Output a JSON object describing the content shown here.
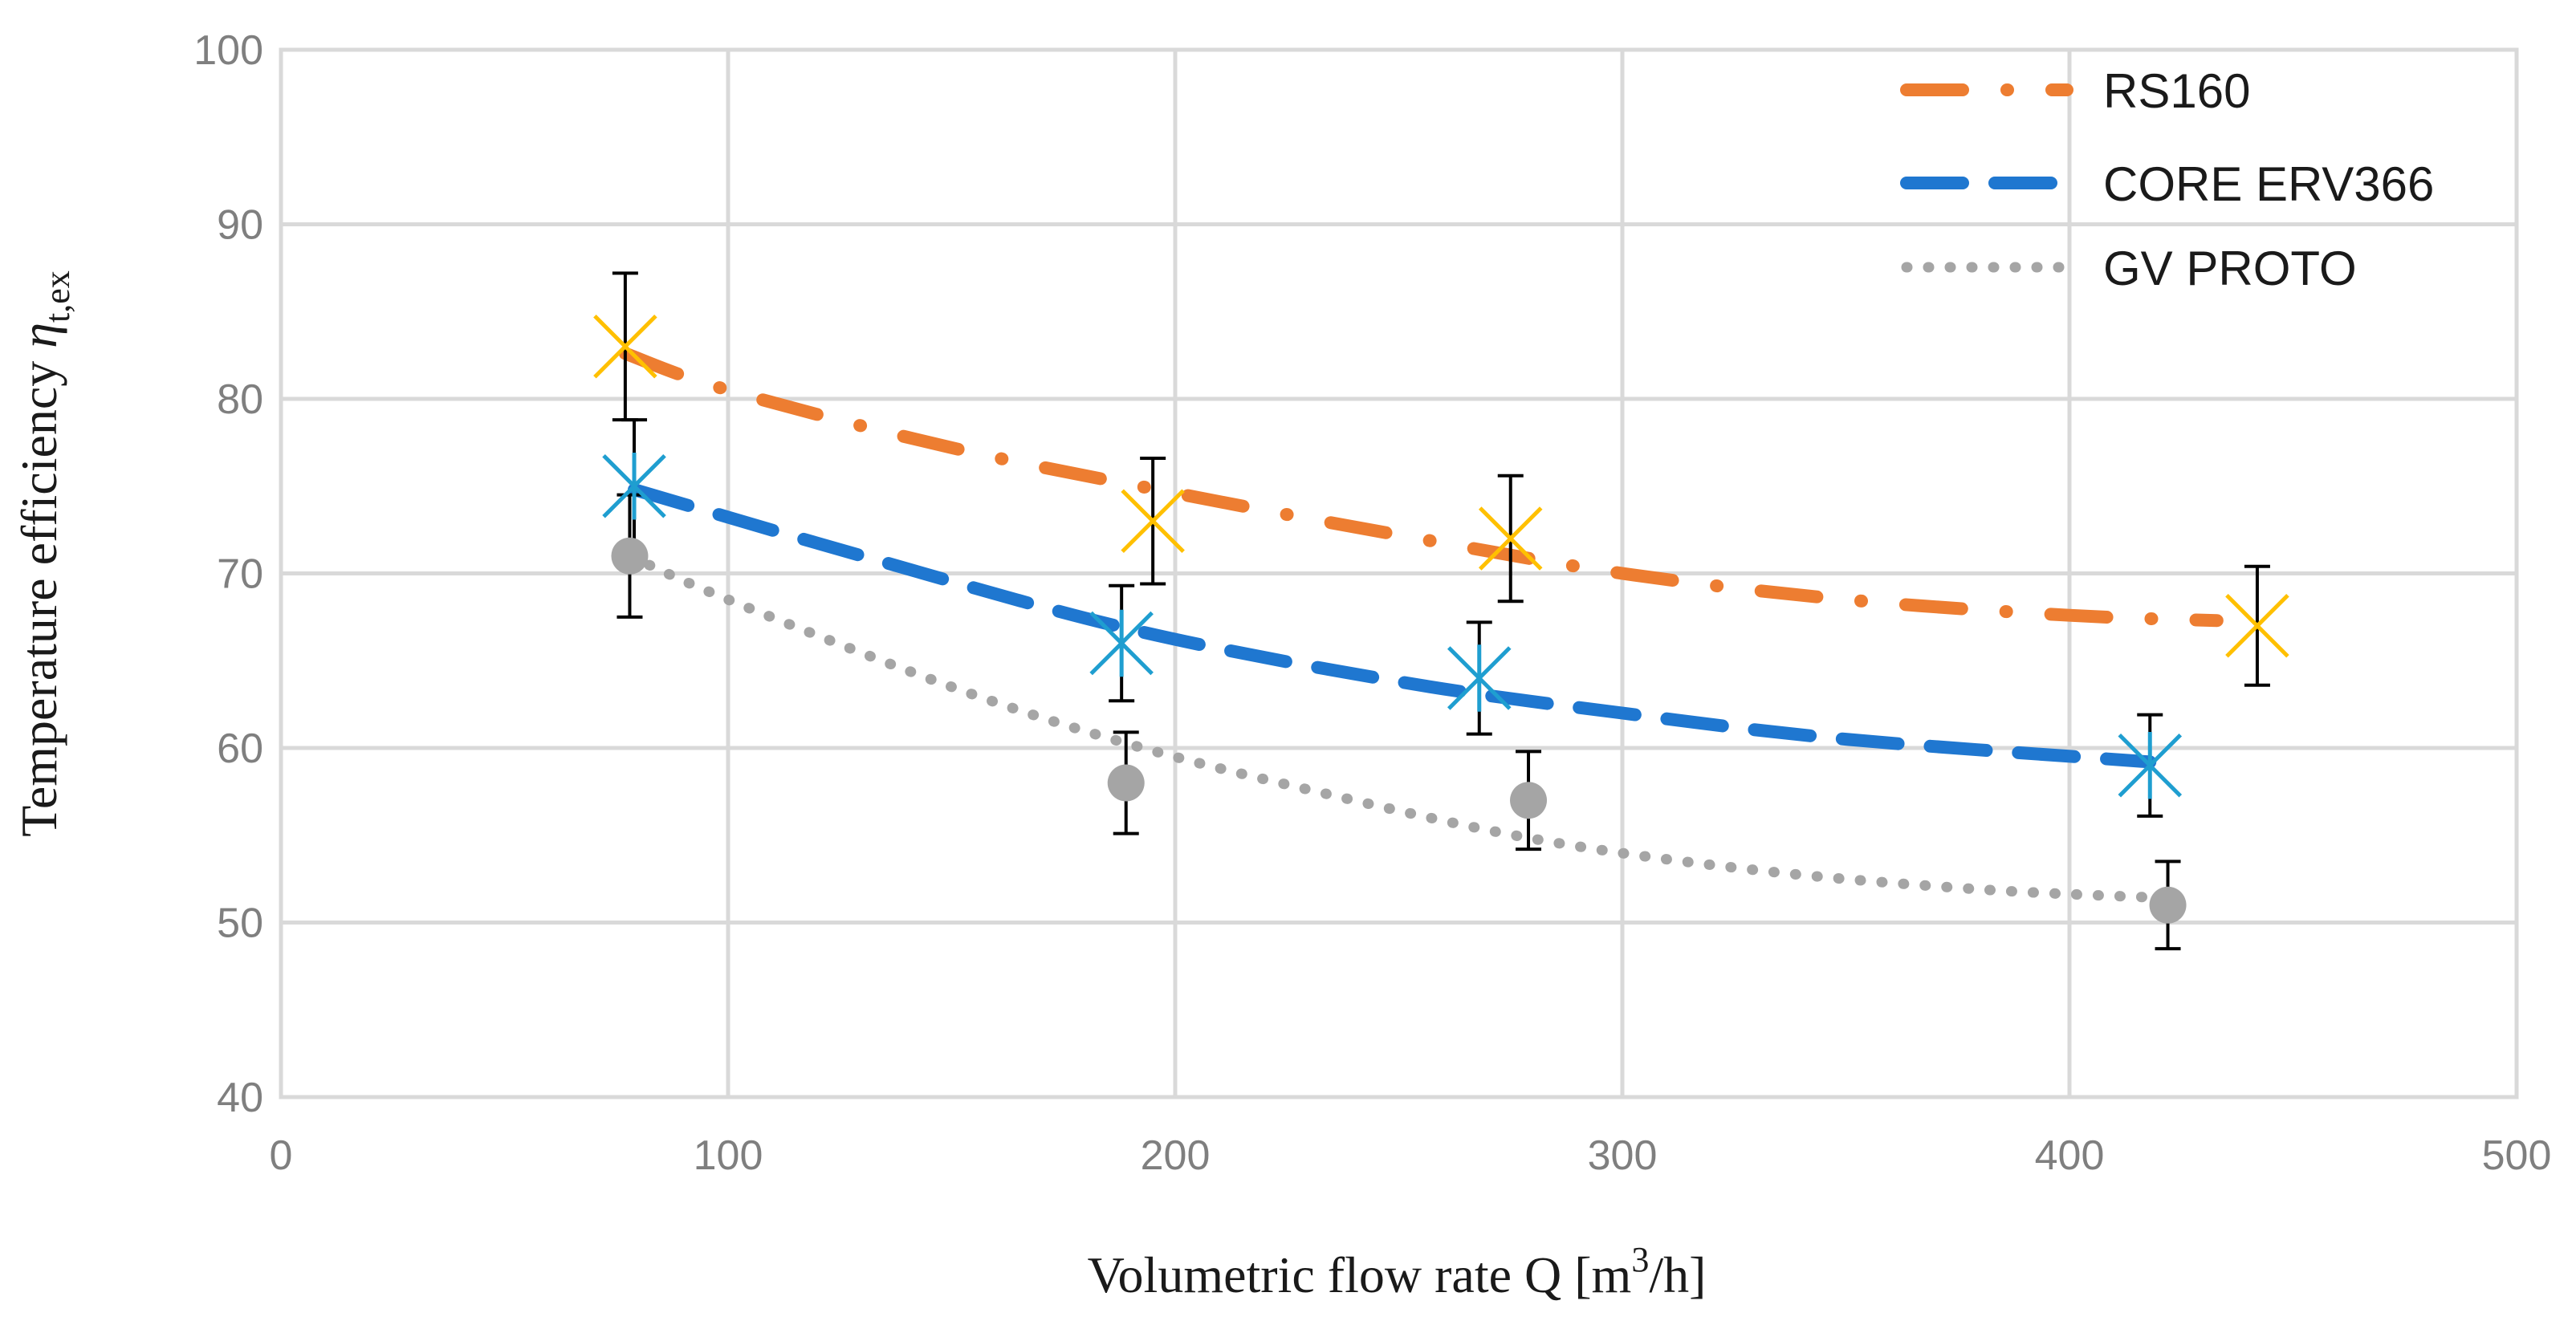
{
  "chart_data": {
    "type": "scatter",
    "title": "",
    "xlabel": "Volumetric flow rate Q [m3/h]",
    "xlabel_parts": {
      "main": "Volumetric flow rate Q [m",
      "sup": "3",
      "tail": "/h]"
    },
    "ylabel": "Temperature efficiency ηt,ex",
    "ylabel_parts": {
      "main": "Temperature efficiency ",
      "symbol": "η",
      "sub": "t,ex"
    },
    "xlim": [
      0,
      500
    ],
    "ylim": [
      40,
      100
    ],
    "x_ticks": [
      0,
      100,
      200,
      300,
      400,
      500
    ],
    "y_ticks": [
      40,
      50,
      60,
      70,
      80,
      90,
      100
    ],
    "grid": true,
    "legend_position": "top-right",
    "series": [
      {
        "name": "RS160",
        "color": "#ed7d31",
        "line_style": "dash-dot",
        "marker": "x-asterisk",
        "marker_color": "#ffc000",
        "points": [
          {
            "x": 77,
            "y": 83,
            "err": 4.2
          },
          {
            "x": 195,
            "y": 73,
            "err": 3.6
          },
          {
            "x": 275,
            "y": 72,
            "err": 3.6
          },
          {
            "x": 442,
            "y": 67,
            "err": 3.4
          }
        ],
        "trend": [
          [
            77,
            82.6
          ],
          [
            100,
            80.5
          ],
          [
            150,
            77.2
          ],
          [
            200,
            74.6
          ],
          [
            250,
            72.2
          ],
          [
            300,
            70.0
          ],
          [
            350,
            68.5
          ],
          [
            400,
            67.6
          ],
          [
            433,
            67.3
          ]
        ]
      },
      {
        "name": "CORE ERV366",
        "color": "#1f77d0",
        "line_style": "dashed",
        "marker": "asterisk",
        "marker_color": "#1f9ed0",
        "points": [
          {
            "x": 79,
            "y": 75,
            "err": 3.8
          },
          {
            "x": 188,
            "y": 66,
            "err": 3.3
          },
          {
            "x": 268,
            "y": 64,
            "err": 3.2
          },
          {
            "x": 418,
            "y": 59,
            "err": 2.9
          }
        ],
        "trend": [
          [
            79,
            74.8
          ],
          [
            130,
            71.0
          ],
          [
            190,
            66.8
          ],
          [
            250,
            63.8
          ],
          [
            300,
            62.0
          ],
          [
            350,
            60.5
          ],
          [
            418,
            59.2
          ]
        ]
      },
      {
        "name": "GV PROTO",
        "color": "#a5a5a5",
        "line_style": "dotted",
        "marker": "circle",
        "marker_color": "#a5a5a5",
        "points": [
          {
            "x": 78,
            "y": 71,
            "err": 3.5
          },
          {
            "x": 189,
            "y": 58,
            "err": 2.9
          },
          {
            "x": 279,
            "y": 57,
            "err": 2.8
          },
          {
            "x": 422,
            "y": 51,
            "err": 2.5
          }
        ],
        "trend": [
          [
            78,
            71.0
          ],
          [
            100,
            68.5
          ],
          [
            150,
            63.5
          ],
          [
            190,
            60.2
          ],
          [
            230,
            57.6
          ],
          [
            280,
            54.8
          ],
          [
            330,
            53.0
          ],
          [
            380,
            51.9
          ],
          [
            422,
            51.4
          ]
        ]
      }
    ]
  }
}
